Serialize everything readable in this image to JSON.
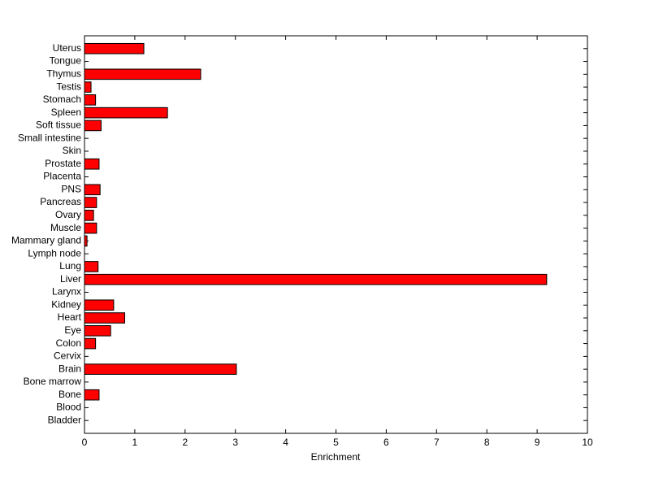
{
  "chart_data": {
    "type": "barh",
    "xlabel": "Enrichment",
    "categories": [
      "Bladder",
      "Blood",
      "Bone",
      "Bone marrow",
      "Brain",
      "Cervix",
      "Colon",
      "Eye",
      "Heart",
      "Kidney",
      "Larynx",
      "Liver",
      "Lung",
      "Lymph node",
      "Mammary gland",
      "Muscle",
      "Ovary",
      "Pancreas",
      "PNS",
      "Placenta",
      "Prostate",
      "Skin",
      "Small intestine",
      "Soft tissue",
      "Spleen",
      "Stomach",
      "Testis",
      "Thymus",
      "Tongue",
      "Uterus"
    ],
    "values": [
      0,
      0,
      0.29,
      0,
      3.02,
      0,
      0.22,
      0.52,
      0.8,
      0.58,
      0,
      9.19,
      0.27,
      0,
      0.05,
      0.24,
      0.18,
      0.24,
      0.31,
      0,
      0.29,
      0,
      0,
      0.33,
      1.65,
      0.22,
      0.13,
      2.31,
      0,
      1.18
    ],
    "color": "#ff0000",
    "xlim": [
      0,
      10
    ],
    "xticks": [
      0,
      1,
      2,
      3,
      4,
      5,
      6,
      7,
      8,
      9,
      10
    ]
  }
}
